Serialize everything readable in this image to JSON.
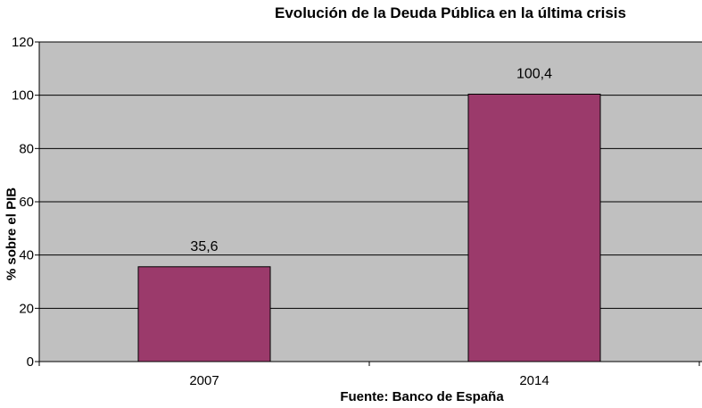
{
  "chart_data": {
    "type": "bar",
    "title": "Evolución de la Deuda Pública en la última crisis",
    "xlabel": "Fuente: Banco de España",
    "ylabel": "% sobre el PIB",
    "categories": [
      "2007",
      "2014"
    ],
    "values": [
      35.6,
      100.4
    ],
    "data_labels": [
      "35,6",
      "100,4"
    ],
    "ylim": [
      0,
      120
    ],
    "yticks": [
      0,
      20,
      40,
      60,
      80,
      100,
      120
    ],
    "ytick_labels": [
      "0",
      "20",
      "40",
      "60",
      "80",
      "100",
      "120"
    ],
    "grid": true,
    "legend": "none",
    "colors": {
      "bar": "#9b3a6b",
      "plot_background": "#c0c0c0",
      "gridline": "#000000"
    }
  }
}
